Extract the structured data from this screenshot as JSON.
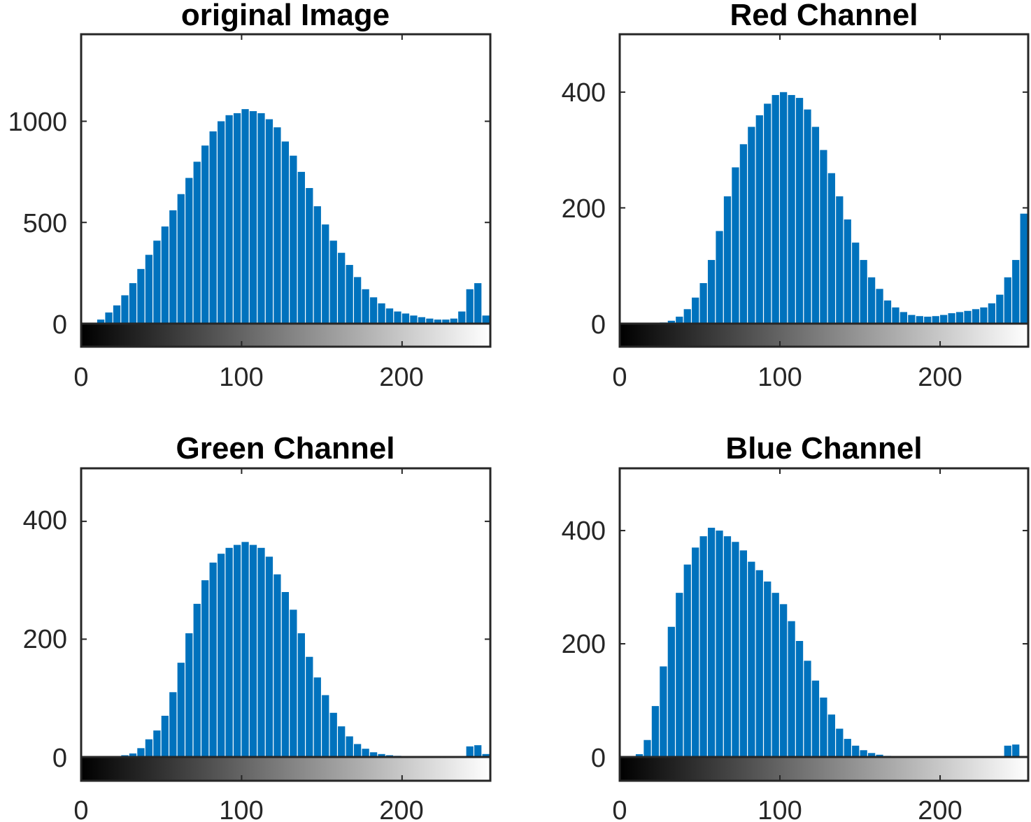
{
  "figure": {
    "bar_color": "#0072BD",
    "axis_color": "#262626",
    "colorbar": "grayscale 0-255"
  },
  "chart_data": [
    {
      "type": "bar",
      "title": "original Image",
      "xlim": [
        0,
        255
      ],
      "ylim": [
        -110,
        1430
      ],
      "xticks": [
        "0",
        "100",
        "200"
      ],
      "yticks": [
        "0",
        "500",
        "1000"
      ],
      "grid": false,
      "x_start": 0,
      "x_step": 5,
      "values": [
        0,
        5,
        20,
        55,
        90,
        140,
        200,
        270,
        340,
        410,
        480,
        560,
        640,
        720,
        800,
        880,
        950,
        1000,
        1030,
        1040,
        1060,
        1050,
        1040,
        1010,
        970,
        900,
        830,
        750,
        670,
        580,
        490,
        410,
        350,
        290,
        230,
        170,
        130,
        100,
        75,
        60,
        50,
        40,
        32,
        25,
        20,
        20,
        25,
        60,
        170,
        200,
        40
      ]
    },
    {
      "type": "bar",
      "title": "Red Channel",
      "xlim": [
        0,
        255
      ],
      "ylim": [
        -40,
        500
      ],
      "xticks": [
        "0",
        "100",
        "200"
      ],
      "yticks": [
        "0",
        "200",
        "400"
      ],
      "grid": false,
      "x_start": 0,
      "x_step": 5,
      "values": [
        0,
        0,
        0,
        0,
        0,
        2,
        5,
        12,
        25,
        45,
        70,
        110,
        160,
        220,
        270,
        310,
        340,
        360,
        380,
        395,
        400,
        395,
        390,
        370,
        340,
        300,
        260,
        220,
        180,
        140,
        110,
        80,
        60,
        40,
        28,
        20,
        15,
        13,
        12,
        13,
        15,
        18,
        20,
        22,
        25,
        28,
        35,
        50,
        80,
        110,
        190
      ]
    },
    {
      "type": "bar",
      "title": "Green Channel",
      "xlim": [
        0,
        255
      ],
      "ylim": [
        -40,
        490
      ],
      "xticks": [
        "0",
        "100",
        "200"
      ],
      "yticks": [
        "0",
        "200",
        "400"
      ],
      "grid": false,
      "x_start": 0,
      "x_step": 5,
      "values": [
        0,
        0,
        0,
        0,
        1,
        3,
        6,
        15,
        30,
        45,
        70,
        110,
        160,
        210,
        260,
        300,
        330,
        345,
        355,
        360,
        365,
        360,
        355,
        340,
        310,
        280,
        250,
        210,
        170,
        135,
        105,
        75,
        52,
        35,
        22,
        14,
        8,
        5,
        3,
        2,
        1,
        1,
        1,
        0,
        0,
        0,
        0,
        0,
        18,
        20,
        5
      ]
    },
    {
      "type": "bar",
      "title": "Blue Channel",
      "xlim": [
        0,
        255
      ],
      "ylim": [
        -40,
        510
      ],
      "xticks": [
        "0",
        "100",
        "200"
      ],
      "yticks": [
        "0",
        "200",
        "400"
      ],
      "grid": false,
      "x_start": 0,
      "x_step": 5,
      "values": [
        0,
        0,
        5,
        30,
        90,
        160,
        230,
        290,
        340,
        370,
        390,
        405,
        400,
        390,
        380,
        365,
        345,
        330,
        310,
        290,
        270,
        240,
        205,
        170,
        135,
        105,
        75,
        50,
        32,
        20,
        12,
        7,
        4,
        2,
        1,
        0,
        0,
        0,
        0,
        0,
        0,
        0,
        0,
        0,
        0,
        0,
        0,
        0,
        20,
        22,
        0
      ]
    }
  ]
}
